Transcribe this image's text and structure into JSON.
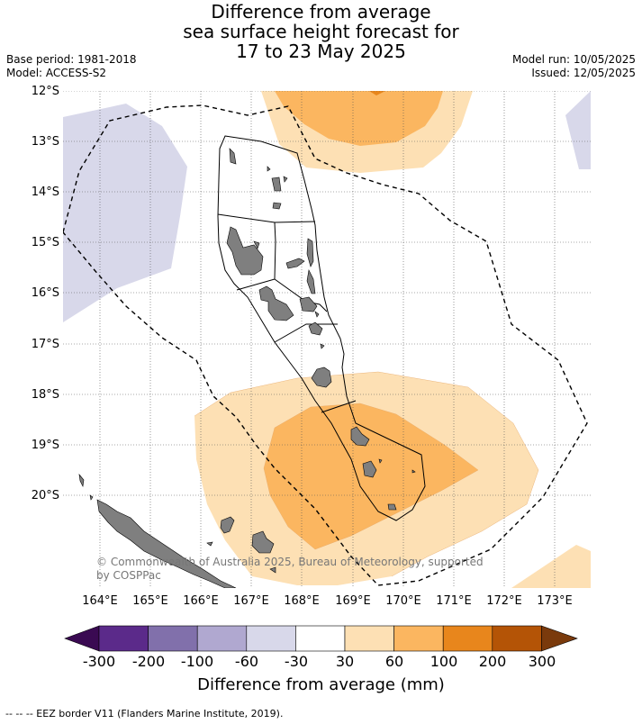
{
  "title": {
    "line1": "Difference from average",
    "line2": "sea surface height forecast for",
    "line3": "17 to 23 May 2025"
  },
  "meta": {
    "base_period": "Base period: 1981-2018",
    "model": "Model: ACCESS-S2",
    "model_run": "Model run: 10/05/2025",
    "issued": "Issued: 12/05/2025"
  },
  "axes": {
    "lat_labels": [
      "12°S",
      "13°S",
      "14°S",
      "15°S",
      "16°S",
      "17°S",
      "18°S",
      "19°S",
      "20°S"
    ],
    "lon_labels": [
      "164°E",
      "165°E",
      "166°E",
      "167°E",
      "168°E",
      "169°E",
      "170°E",
      "171°E",
      "172°E",
      "173°E"
    ]
  },
  "copyright": {
    "line1": "© Commonwealth of Australia 2025, Bureau of Meteorology, supported",
    "line2": "by COSPPac"
  },
  "colorbar": {
    "title": "Difference from average (mm)",
    "ticks": [
      "-300",
      "-200",
      "-100",
      "-60",
      "-30",
      "30",
      "60",
      "100",
      "200",
      "300"
    ],
    "colors": {
      "below_min": "#3a0a52",
      "bins": [
        "#5b2a8a",
        "#8170ab",
        "#b0a8d0",
        "#d8d8ea",
        "#ffffff",
        "#fde0b4",
        "#fbb660",
        "#e8861c",
        "#b45406"
      ],
      "above_max": "#7a3a0c"
    }
  },
  "footnote": "-- -- -- EEZ border V11 (Flanders Marine Institute, 2019)."
}
